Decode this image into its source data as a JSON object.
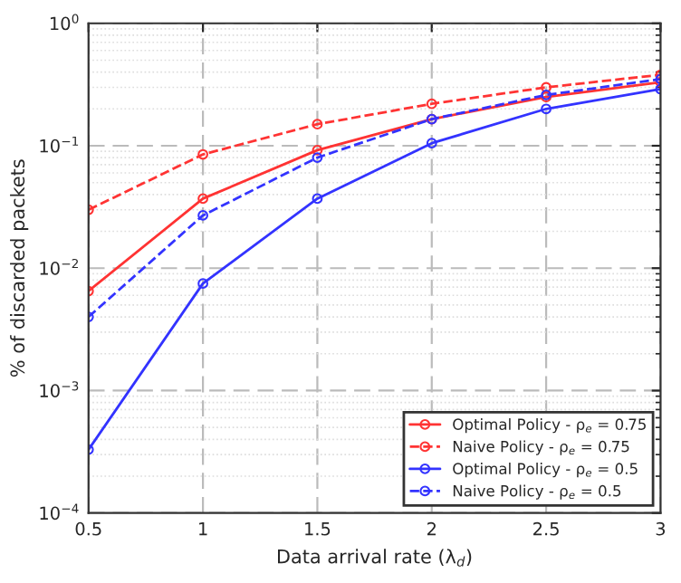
{
  "chart_data": {
    "type": "line",
    "xlabel": "Data arrival rate (λ$_{d}$)",
    "ylabel": "% of discarded packets",
    "x": [
      0.5,
      1,
      1.5,
      2,
      2.5,
      3
    ],
    "series": [
      {
        "name": "Optimal Policy - ρ$_{e}$ = 0.75",
        "color": "#ff3333",
        "line_style": "solid",
        "values": [
          0.0065,
          0.037,
          0.092,
          0.165,
          0.25,
          0.33
        ]
      },
      {
        "name": "Naive Policy - ρ$_{e}$ = 0.75",
        "color": "#ff3333",
        "line_style": "dashed",
        "values": [
          0.03,
          0.085,
          0.15,
          0.22,
          0.3,
          0.38
        ]
      },
      {
        "name": "Optimal Policy - ρ$_{e}$ = 0.5",
        "color": "#3333ff",
        "line_style": "solid",
        "values": [
          0.00033,
          0.0075,
          0.037,
          0.105,
          0.2,
          0.29
        ]
      },
      {
        "name": "Naive Policy - ρ$_{e}$ = 0.5",
        "color": "#3333ff",
        "line_style": "dashed",
        "values": [
          0.004,
          0.027,
          0.08,
          0.165,
          0.26,
          0.35
        ]
      }
    ],
    "log": "y",
    "marker": "circle",
    "grid": true,
    "legend": "bottom right",
    "xlim": [
      0.5,
      3
    ],
    "xticks": [
      0.5,
      1,
      1.5,
      2,
      2.5,
      3
    ],
    "ylim": [
      0.0001,
      1
    ],
    "yticks": [
      {
        "value": 0.0001,
        "label": "10$^{−4}$"
      },
      {
        "value": 0.001,
        "label": "10$^{−3}$"
      },
      {
        "value": 0.01,
        "label": "10$^{−2}$"
      },
      {
        "value": 0.1,
        "label": "10$^{−1}$"
      },
      {
        "value": 1,
        "label": "10$^{0}$"
      }
    ]
  }
}
